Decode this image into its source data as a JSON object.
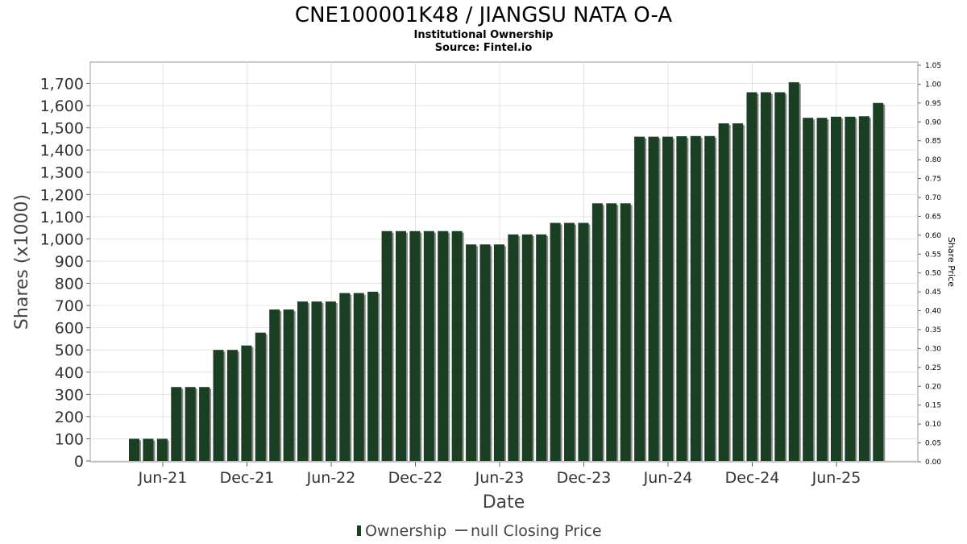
{
  "chart_data": {
    "type": "bar",
    "title": "CNE100001K48 / JIANGSU NATA O-A",
    "subtitle": "Institutional Ownership",
    "source": "Source: Fintel.io",
    "xlabel": "Date",
    "ylabel": "Shares (x1000)",
    "y2label": "Share Price",
    "ylim": [
      0,
      1800
    ],
    "y_ticks": [
      0,
      100,
      200,
      300,
      400,
      500,
      600,
      700,
      800,
      900,
      1000,
      1100,
      1200,
      1300,
      1400,
      1500,
      1600,
      1700
    ],
    "y_tick_labels": [
      "0",
      "100",
      "200",
      "300",
      "400",
      "500",
      "600",
      "700",
      "800",
      "900",
      "1,000",
      "1,100",
      "1,200",
      "1,300",
      "1,400",
      "1,500",
      "1,600",
      "1,700"
    ],
    "y2lim": [
      0,
      1.05
    ],
    "y2_tick_labels": [
      "0.00",
      "0.05",
      "0.10",
      "0.15",
      "0.20",
      "0.25",
      "0.30",
      "0.35",
      "0.40",
      "0.45",
      "0.50",
      "0.55",
      "0.60",
      "0.65",
      "0.70",
      "0.75",
      "0.80",
      "0.85",
      "0.90",
      "0.95",
      "1.00",
      "1.05"
    ],
    "x_tick_labels": [
      "Jun-21",
      "Dec-21",
      "Jun-22",
      "Dec-22",
      "Jun-23",
      "Dec-23",
      "Jun-24",
      "Dec-24",
      "Jun-25"
    ],
    "grid": true,
    "legend_position": "bottom",
    "series": [
      {
        "name": "Ownership",
        "color": "#1a3f22",
        "values": [
          100,
          100,
          100,
          333,
          333,
          333,
          500,
          500,
          520,
          578,
          682,
          682,
          718,
          718,
          718,
          756,
          756,
          762,
          1035,
          1035,
          1035,
          1035,
          1035,
          1035,
          975,
          975,
          975,
          1020,
          1020,
          1020,
          1072,
          1072,
          1072,
          1160,
          1160,
          1160,
          1460,
          1460,
          1460,
          1462,
          1463,
          1463,
          1520,
          1520,
          1660,
          1660,
          1660,
          1705,
          1545,
          1545,
          1550,
          1550,
          1552,
          1612
        ]
      },
      {
        "name": "null Closing Price",
        "color": "#555555",
        "values": []
      }
    ]
  }
}
